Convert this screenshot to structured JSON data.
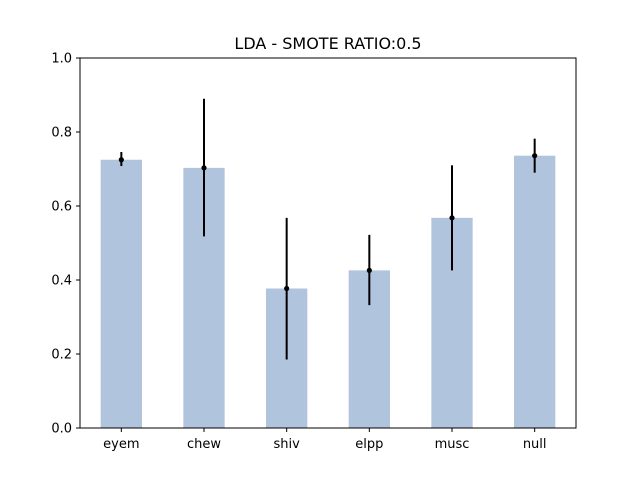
{
  "chart_data": {
    "type": "bar",
    "title": "LDA - SMOTE RATIO:0.5",
    "xlabel": "",
    "ylabel": "",
    "categories": [
      "eyem",
      "chew",
      "shiv",
      "elpp",
      "musc",
      "null"
    ],
    "values": [
      0.725,
      0.703,
      0.377,
      0.426,
      0.568,
      0.736
    ],
    "error_low": [
      0.708,
      0.518,
      0.185,
      0.332,
      0.426,
      0.69
    ],
    "error_high": [
      0.746,
      0.89,
      0.568,
      0.522,
      0.71,
      0.782
    ],
    "ylim": [
      0,
      1.0
    ],
    "yticks": [
      "0.0",
      "0.2",
      "0.4",
      "0.6",
      "0.8",
      "1.0"
    ],
    "grid": false,
    "colors": {
      "bar": "#b0c4de",
      "error": "#000000",
      "axis": "#000000"
    }
  }
}
